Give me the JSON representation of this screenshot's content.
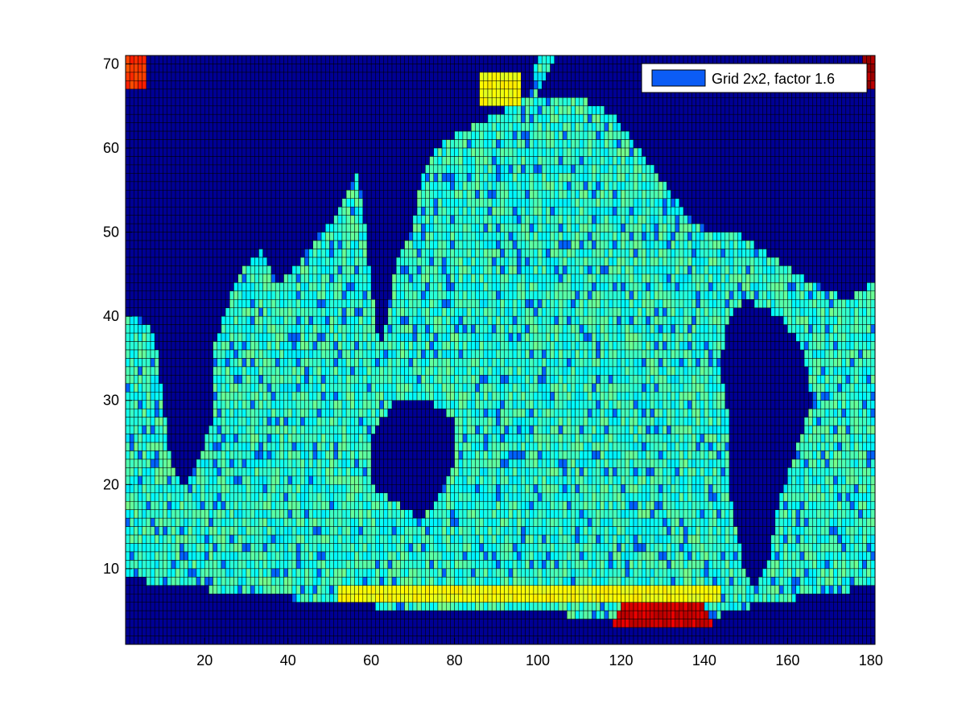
{
  "chart_data": {
    "type": "heatmap",
    "title": "",
    "xlabel": "",
    "ylabel": "",
    "xlim": [
      1,
      181
    ],
    "ylim": [
      1,
      71
    ],
    "x_ticks": [
      20,
      40,
      60,
      80,
      100,
      120,
      140,
      160,
      180
    ],
    "y_ticks": [
      10,
      20,
      30,
      40,
      50,
      60,
      70
    ],
    "grid_cols": 180,
    "grid_rows": 70,
    "colormap": "jet",
    "cell_edge_color": "#000000",
    "legend": {
      "placement": "top-right",
      "entries": [
        {
          "label": "Grid 2x2, factor 1.6",
          "color": "#0b5cf5"
        }
      ]
    },
    "value_regions": {
      "land_value": 0.02,
      "ocean_typical_value": 0.42,
      "description_note": "",
      "land_polygons": [
        {
          "name": "americas",
          "points": [
            [
              1,
              71
            ],
            [
              58,
              71
            ],
            [
              60,
              64
            ],
            [
              58,
              58
            ],
            [
              52,
              52
            ],
            [
              48,
              50
            ],
            [
              42,
              46
            ],
            [
              38,
              44
            ],
            [
              34,
              48
            ],
            [
              30,
              46
            ],
            [
              26,
              42
            ],
            [
              22,
              36
            ],
            [
              22,
              28
            ],
            [
              18,
              22
            ],
            [
              15,
              20
            ],
            [
              12,
              22
            ],
            [
              10,
              30
            ],
            [
              8,
              38
            ],
            [
              4,
              40
            ],
            [
              1,
              40
            ]
          ]
        },
        {
          "name": "greenland",
          "points": [
            [
              24,
              71
            ],
            [
              60,
              71
            ],
            [
              62,
              66
            ],
            [
              58,
              64
            ],
            [
              52,
              66
            ],
            [
              46,
              65
            ],
            [
              38,
              68
            ],
            [
              30,
              68
            ]
          ]
        },
        {
          "name": "antarctica",
          "points": [
            [
              1,
              9
            ],
            [
              12,
              8
            ],
            [
              30,
              7
            ],
            [
              52,
              6
            ],
            [
              70,
              5
            ],
            [
              100,
              5
            ],
            [
              115,
              4
            ],
            [
              140,
              4
            ],
            [
              155,
              6
            ],
            [
              170,
              7
            ],
            [
              181,
              8
            ],
            [
              181,
              1
            ],
            [
              1,
              1
            ]
          ]
        },
        {
          "name": "africa",
          "points": [
            [
              146,
              40
            ],
            [
              150,
              42
            ],
            [
              158,
              40
            ],
            [
              164,
              36
            ],
            [
              166,
              30
            ],
            [
              162,
              24
            ],
            [
              158,
              18
            ],
            [
              156,
              12
            ],
            [
              153,
              8
            ],
            [
              150,
              9
            ],
            [
              148,
              14
            ],
            [
              146,
              20
            ],
            [
              146,
              28
            ],
            [
              144,
              34
            ]
          ]
        },
        {
          "name": "eurasia",
          "points": [
            [
              104,
              71
            ],
            [
              181,
              71
            ],
            [
              181,
              44
            ],
            [
              174,
              42
            ],
            [
              166,
              44
            ],
            [
              160,
              46
            ],
            [
              154,
              48
            ],
            [
              148,
              50
            ],
            [
              142,
              50
            ],
            [
              136,
              52
            ],
            [
              130,
              56
            ],
            [
              124,
              60
            ],
            [
              118,
              64
            ],
            [
              110,
              66
            ],
            [
              100,
              66
            ]
          ]
        },
        {
          "name": "asia_east",
          "points": [
            [
              60,
              71
            ],
            [
              100,
              71
            ],
            [
              98,
              66
            ],
            [
              90,
              64
            ],
            [
              82,
              62
            ],
            [
              76,
              60
            ],
            [
              72,
              56
            ],
            [
              70,
              50
            ],
            [
              66,
              46
            ],
            [
              64,
              40
            ],
            [
              62,
              36
            ],
            [
              60,
              44
            ],
            [
              58,
              54
            ],
            [
              56,
              60
            ]
          ]
        },
        {
          "name": "australia",
          "points": [
            [
              60,
              26
            ],
            [
              66,
              30
            ],
            [
              74,
              30
            ],
            [
              80,
              28
            ],
            [
              80,
              22
            ],
            [
              76,
              18
            ],
            [
              72,
              16
            ],
            [
              66,
              18
            ],
            [
              60,
              20
            ]
          ]
        }
      ],
      "warm_patches": [
        {
          "name": "antarctic_warm_band",
          "points": [
            [
              118,
              3
            ],
            [
              142,
              3
            ],
            [
              140,
              6
            ],
            [
              120,
              6
            ]
          ],
          "value": 0.92
        },
        {
          "name": "antarctic_coast_band",
          "points": [
            [
              52,
              6
            ],
            [
              144,
              6
            ],
            [
              144,
              8
            ],
            [
              52,
              8
            ]
          ],
          "value": 0.62
        },
        {
          "name": "arctic_corner_left",
          "points": [
            [
              1,
              71
            ],
            [
              6,
              71
            ],
            [
              6,
              67
            ],
            [
              1,
              67
            ]
          ],
          "value": 0.82
        },
        {
          "name": "arctic_corner_right",
          "points": [
            [
              178,
              71
            ],
            [
              181,
              71
            ],
            [
              181,
              67
            ],
            [
              178,
              67
            ]
          ],
          "value": 0.97
        },
        {
          "name": "bering_patch",
          "points": [
            [
              86,
              69
            ],
            [
              96,
              69
            ],
            [
              96,
              65
            ],
            [
              86,
              65
            ]
          ],
          "value": 0.62
        }
      ]
    }
  }
}
